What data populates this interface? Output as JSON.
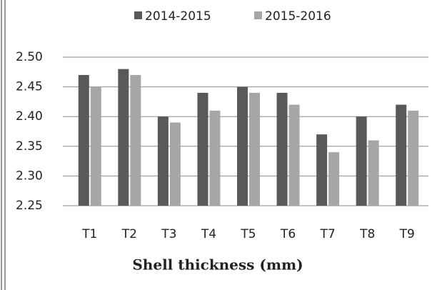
{
  "chart_data": {
    "type": "bar",
    "x_label": "Shell thickness (mm)",
    "categories": [
      "T1",
      "T2",
      "T3",
      "T4",
      "T5",
      "T6",
      "T7",
      "T8",
      "T9"
    ],
    "series": [
      {
        "name": "2014-2015",
        "color": "#595959",
        "values": [
          2.47,
          2.48,
          2.4,
          2.44,
          2.45,
          2.44,
          2.37,
          2.4,
          2.42
        ]
      },
      {
        "name": "2015-2016",
        "color": "#a6a6a6",
        "values": [
          2.45,
          2.47,
          2.39,
          2.41,
          2.44,
          2.42,
          2.34,
          2.36,
          2.41
        ]
      }
    ],
    "ylim": [
      2.25,
      2.5
    ],
    "yticks": [
      2.25,
      {
        "value": 2.3,
        "label": "2.30"
      },
      2.35,
      {
        "value": 2.4,
        "label": "2.40"
      },
      2.45,
      {
        "value": 2.5,
        "label": "2.50"
      }
    ],
    "grid": true,
    "legend": "top"
  }
}
